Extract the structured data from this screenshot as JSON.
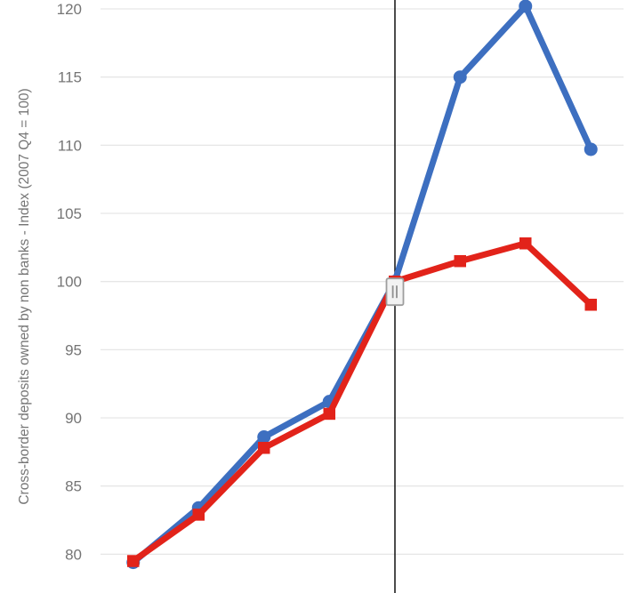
{
  "chart_data": {
    "type": "line",
    "title": "",
    "xlabel": "",
    "ylabel": "Cross-border deposits owned by non banks - Index (2007 Q4 = 100)",
    "x_axis_labels_visible": false,
    "num_points": 8,
    "yticks": [
      80,
      85,
      90,
      95,
      100,
      105,
      110,
      115,
      120
    ],
    "ylim": [
      77.2,
      120.7
    ],
    "grid": "horizontal",
    "legend": "none",
    "series": [
      {
        "name": "blue-series",
        "marker": "circle",
        "color": "#3D6FC0",
        "values": [
          79.4,
          83.4,
          88.6,
          91.2,
          100,
          115,
          120.2,
          109.7
        ]
      },
      {
        "name": "red-series",
        "marker": "square",
        "color": "#E2231A",
        "values": [
          79.5,
          82.9,
          87.8,
          90.3,
          100,
          101.5,
          102.8,
          98.3
        ]
      }
    ],
    "reference_line": {
      "orientation": "vertical",
      "at_point_index": 4,
      "at_value": 100,
      "color": "#000000",
      "has_drag_handle": true
    }
  },
  "colors": {
    "background": "#FFFFFF",
    "gridline": "#E6E6E6",
    "tick_label": "#757575",
    "axis_title": "#757575",
    "reference_line": "#000000",
    "handle_fill": "#F2F2F2",
    "handle_border": "#9E9E9E",
    "handle_grip": "#8F8F8F"
  }
}
